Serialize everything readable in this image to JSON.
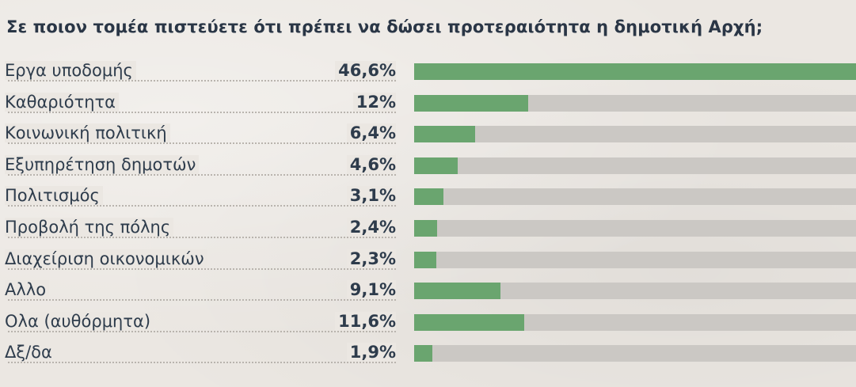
{
  "chart_data": {
    "type": "bar",
    "orientation": "horizontal",
    "title": "Σε ποιον τομέα πιστεύετε ότι πρέπει να δώσει προτεραιότητα η δημοτική Αρχή;",
    "categories": [
      "Εργα υποδομής",
      "Καθαριότητα",
      "Κοινωνική πολιτική",
      "Εξυπηρέτηση δημοτών",
      "Πολιτισμός",
      "Προβολή της πόλης",
      "Διαχείριση οικονομικών",
      "Αλλο",
      "Ολα (αυθόρμητα)",
      "Δξ/δα"
    ],
    "values": [
      46.6,
      12,
      6.4,
      4.6,
      3.1,
      2.4,
      2.3,
      9.1,
      11.6,
      1.9
    ],
    "value_labels": [
      "46,6%",
      "12%",
      "6,4%",
      "4,6%",
      "3,1%",
      "2,4%",
      "2,3%",
      "9,1%",
      "11,6%",
      "1,9%"
    ],
    "unit": "%",
    "xlim": [
      0,
      46.6
    ],
    "grid": false,
    "colors": {
      "fill": "#6aa56f",
      "track": "#cbc8c4",
      "text": "#2e3c4c",
      "background": "#ebe7e2"
    }
  }
}
